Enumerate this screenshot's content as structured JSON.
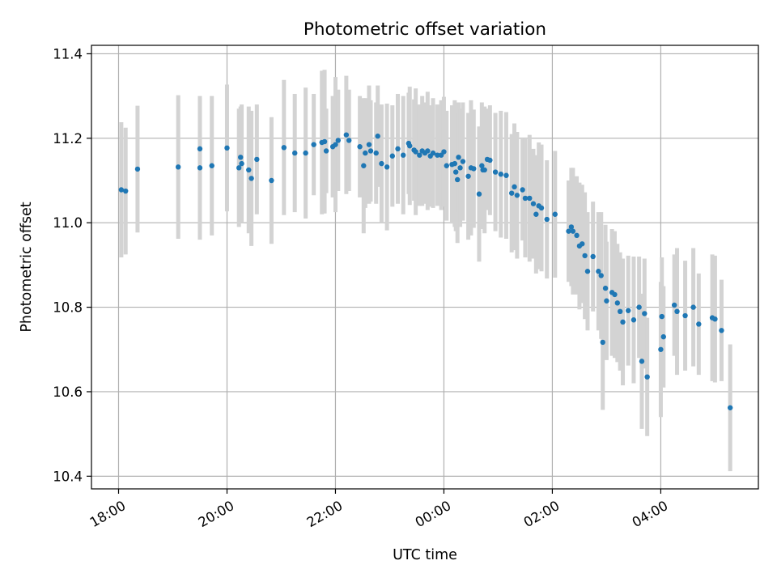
{
  "chart_data": {
    "type": "scatter",
    "title": "Photometric offset variation",
    "xlabel": "UTC time",
    "ylabel": "Photometric offset",
    "x_tick_labels": [
      "18:00",
      "20:00",
      "22:00",
      "00:00",
      "02:00",
      "04:00"
    ],
    "x_ticks_hours": [
      18,
      20,
      22,
      24,
      26,
      28
    ],
    "x_range_hours": [
      17.5,
      29.8
    ],
    "y_ticks": [
      10.4,
      10.6,
      10.8,
      11.0,
      11.2,
      11.4
    ],
    "ylim": [
      10.37,
      11.42
    ],
    "grid": true,
    "colors": {
      "point": "#1f77b4",
      "errorbar": "#d3d3d3",
      "grid": "#b0b0b0"
    },
    "series": [
      {
        "x_hours": [
          18.05,
          18.13,
          18.35,
          19.1,
          19.5,
          19.5,
          19.72,
          20.0,
          20.22,
          20.27,
          20.25,
          20.4,
          20.45,
          20.55,
          20.82,
          21.05,
          21.25,
          21.45,
          21.6,
          21.75,
          21.8,
          21.83,
          21.95,
          22.0,
          22.05,
          22.2,
          22.25,
          22.45,
          22.52,
          22.55,
          22.62,
          22.65,
          22.75,
          22.78,
          22.85,
          22.95,
          23.05,
          23.15,
          23.25,
          23.35,
          23.37,
          23.45,
          23.48,
          23.55,
          23.6,
          23.65,
          23.7,
          23.75,
          23.8,
          23.88,
          23.95,
          24.0,
          24.05,
          24.15,
          24.2,
          24.22,
          24.25,
          24.27,
          24.3,
          24.35,
          24.45,
          24.5,
          24.55,
          24.65,
          24.7,
          24.72,
          24.75,
          24.8,
          24.85,
          24.95,
          25.05,
          25.15,
          25.25,
          25.3,
          25.35,
          25.45,
          25.5,
          25.58,
          25.65,
          25.7,
          25.75,
          25.8,
          25.9,
          26.05,
          26.3,
          26.35,
          26.38,
          26.45,
          26.5,
          26.55,
          26.6,
          26.65,
          26.75,
          26.85,
          26.9,
          26.93,
          26.98,
          27.0,
          27.1,
          27.15,
          27.2,
          27.25,
          27.3,
          27.4,
          27.5,
          27.6,
          27.65,
          27.7,
          27.75,
          28.0,
          28.02,
          28.05,
          28.25,
          28.3,
          28.45,
          28.6,
          28.7,
          28.95,
          29.0,
          29.12,
          29.28
        ],
        "y": [
          11.078,
          11.075,
          11.127,
          11.132,
          11.13,
          11.175,
          11.135,
          11.177,
          11.13,
          11.14,
          11.155,
          11.125,
          11.105,
          11.15,
          11.1,
          11.178,
          11.165,
          11.165,
          11.185,
          11.19,
          11.192,
          11.17,
          11.18,
          11.185,
          11.195,
          11.208,
          11.195,
          11.18,
          11.135,
          11.165,
          11.185,
          11.17,
          11.165,
          11.205,
          11.14,
          11.132,
          11.158,
          11.175,
          11.16,
          11.188,
          11.182,
          11.172,
          11.168,
          11.16,
          11.17,
          11.165,
          11.17,
          11.158,
          11.165,
          11.16,
          11.16,
          11.168,
          11.135,
          11.138,
          11.14,
          11.12,
          11.102,
          11.155,
          11.13,
          11.145,
          11.11,
          11.13,
          11.128,
          11.068,
          11.135,
          11.125,
          11.125,
          11.15,
          11.148,
          11.12,
          11.115,
          11.112,
          11.07,
          11.085,
          11.065,
          11.078,
          11.058,
          11.058,
          11.045,
          11.02,
          11.04,
          11.035,
          11.008,
          11.02,
          10.98,
          10.99,
          10.98,
          10.97,
          10.945,
          10.95,
          10.922,
          10.885,
          10.92,
          10.885,
          10.875,
          10.717,
          10.845,
          10.815,
          10.835,
          10.83,
          10.81,
          10.79,
          10.765,
          10.792,
          10.77,
          10.8,
          10.672,
          10.785,
          10.635,
          10.7,
          10.778,
          10.73,
          10.805,
          10.79,
          10.78,
          10.8,
          10.76,
          10.775,
          10.772,
          10.745,
          10.562
        ],
        "yerr": [
          0.16,
          0.15,
          0.15,
          0.17,
          0.17,
          0.12,
          0.165,
          0.15,
          0.14,
          0.14,
          0.12,
          0.15,
          0.16,
          0.13,
          0.15,
          0.16,
          0.14,
          0.155,
          0.12,
          0.17,
          0.17,
          0.1,
          0.12,
          0.16,
          0.12,
          0.14,
          0.12,
          0.12,
          0.16,
          0.13,
          0.14,
          0.12,
          0.12,
          0.12,
          0.14,
          0.15,
          0.12,
          0.13,
          0.14,
          0.12,
          0.14,
          0.12,
          0.15,
          0.12,
          0.13,
          0.12,
          0.14,
          0.12,
          0.13,
          0.12,
          0.13,
          0.13,
          0.13,
          0.14,
          0.15,
          0.14,
          0.15,
          0.13,
          0.14,
          0.14,
          0.15,
          0.16,
          0.14,
          0.16,
          0.15,
          0.14,
          0.15,
          0.12,
          0.13,
          0.14,
          0.15,
          0.15,
          0.14,
          0.15,
          0.15,
          0.12,
          0.14,
          0.15,
          0.13,
          0.14,
          0.15,
          0.15,
          0.14,
          0.15,
          0.12,
          0.14,
          0.15,
          0.14,
          0.15,
          0.14,
          0.15,
          0.14,
          0.13,
          0.14,
          0.15,
          0.16,
          0.15,
          0.14,
          0.15,
          0.15,
          0.14,
          0.14,
          0.15,
          0.13,
          0.15,
          0.12,
          0.16,
          0.13,
          0.14,
          0.16,
          0.14,
          0.12,
          0.12,
          0.15,
          0.13,
          0.14,
          0.12,
          0.15,
          0.15,
          0.12,
          0.15
        ]
      }
    ]
  }
}
